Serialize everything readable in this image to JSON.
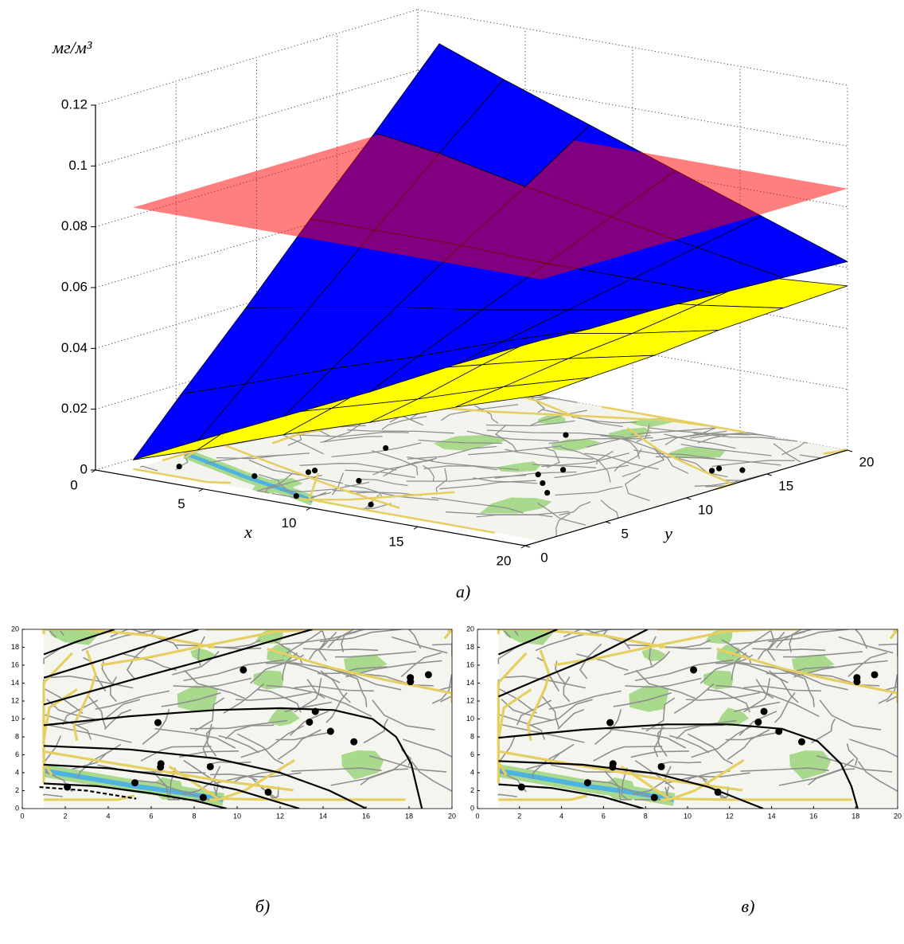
{
  "chart_data": [
    {
      "type": "surface3d",
      "zlabel": "мг/м³",
      "xlabel": "x",
      "ylabel": "y",
      "caption": "а)",
      "xlim": [
        0,
        20
      ],
      "ylim": [
        0,
        20
      ],
      "zlim": [
        0,
        0.12
      ],
      "xticks": [
        0,
        5,
        10,
        15,
        20
      ],
      "yticks": [
        0,
        5,
        10,
        15,
        20
      ],
      "zticks": [
        0,
        0.02,
        0.04,
        0.06,
        0.08,
        0.1,
        0.12
      ],
      "grid": true,
      "grid_x": [
        1,
        4,
        8,
        12,
        16,
        20
      ],
      "grid_y": [
        1,
        4,
        8,
        12,
        16,
        20
      ],
      "surfaces": [
        {
          "color": "#ffff00",
          "z": [
            [
              0.003,
              0.01,
              0.02,
              0.029,
              0.039,
              0.048
            ],
            [
              0.01,
              0.016,
              0.024,
              0.032,
              0.041,
              0.049
            ],
            [
              0.019,
              0.023,
              0.03,
              0.037,
              0.044,
              0.05
            ],
            [
              0.027,
              0.031,
              0.036,
              0.041,
              0.046,
              0.052
            ],
            [
              0.036,
              0.039,
              0.042,
              0.046,
              0.049,
              0.053
            ],
            [
              0.045,
              0.046,
              0.048,
              0.05,
              0.052,
              0.054
            ]
          ]
        },
        {
          "color": "#0000ff",
          "z": [
            [
              0.003,
              0.013,
              0.026,
              0.039,
              0.053,
              0.066
            ],
            [
              0.02,
              0.027,
              0.037,
              0.046,
              0.056,
              0.065
            ],
            [
              0.042,
              0.046,
              0.051,
              0.055,
              0.06,
              0.065
            ],
            [
              0.065,
              0.065,
              0.065,
              0.064,
              0.064,
              0.064
            ],
            [
              0.087,
              0.084,
              0.078,
              0.073,
              0.068,
              0.063
            ],
            [
              0.11,
              0.102,
              0.092,
              0.082,
              0.072,
              0.062
            ]
          ]
        }
      ],
      "plane": {
        "color": "#ff0000",
        "opacity": 0.5,
        "z": 0.086
      }
    },
    {
      "type": "contour",
      "caption": "б)",
      "xlim": [
        0,
        20
      ],
      "ylim": [
        0,
        20
      ],
      "xticks": [
        0,
        2,
        4,
        6,
        8,
        10,
        12,
        14,
        16,
        18,
        20
      ],
      "yticks": [
        0,
        2,
        4,
        6,
        8,
        10,
        12,
        14,
        16,
        18,
        20
      ],
      "series": [
        {
          "color": "#000000",
          "x": [
            1,
            2.5,
            4.3
          ],
          "values": [
            17.2,
            18.6,
            20
          ]
        },
        {
          "color": "#000000",
          "x": [
            1,
            4,
            8.2
          ],
          "values": [
            14.6,
            16.8,
            20
          ]
        },
        {
          "color": "#000000",
          "x": [
            1,
            5,
            9,
            13.5
          ],
          "values": [
            11.6,
            14.3,
            16.9,
            20
          ]
        },
        {
          "color": "#000000",
          "x": [
            1,
            5,
            9,
            12,
            14.5,
            16.3,
            17.4,
            18.1,
            18.6
          ],
          "values": [
            9.3,
            10.3,
            11,
            11.2,
            11,
            10,
            8,
            5,
            0
          ]
        },
        {
          "color": "#000000",
          "x": [
            1,
            5,
            9,
            12,
            14.3,
            16
          ],
          "values": [
            7,
            6.6,
            5.6,
            4,
            2,
            0
          ]
        },
        {
          "color": "#000000",
          "x": [
            1,
            4,
            7,
            10,
            12.9
          ],
          "values": [
            4.9,
            4.5,
            3.6,
            2.1,
            0
          ]
        },
        {
          "color": "#000000",
          "x": [
            1,
            3.5,
            6,
            8,
            9.5
          ],
          "values": [
            2.8,
            2.5,
            1.7,
            0.9,
            0
          ]
        },
        {
          "color": "#000000",
          "dashed": true,
          "x": [
            0.8,
            3,
            5.3
          ],
          "values": [
            2.4,
            2,
            1.1
          ]
        }
      ]
    },
    {
      "type": "contour",
      "caption": "в)",
      "xlim": [
        0,
        20
      ],
      "ylim": [
        0,
        20
      ],
      "xticks": [
        0,
        2,
        4,
        6,
        8,
        10,
        12,
        14,
        16,
        18,
        20
      ],
      "yticks": [
        0,
        2,
        4,
        6,
        8,
        10,
        12,
        14,
        16,
        18,
        20
      ],
      "series": [
        {
          "color": "#000000",
          "x": [
            1,
            2.4,
            3.8
          ],
          "values": [
            17.2,
            18.6,
            20
          ]
        },
        {
          "color": "#000000",
          "x": [
            1,
            3,
            5.5,
            8.1
          ],
          "values": [
            12.5,
            14.5,
            16.9,
            20
          ]
        },
        {
          "color": "#000000",
          "x": [
            1,
            5,
            9,
            12,
            14.5,
            16.2,
            17.3,
            17.8,
            18.1
          ],
          "values": [
            7.9,
            8.8,
            9.4,
            9.4,
            8.9,
            7.5,
            5,
            2.5,
            0
          ]
        },
        {
          "color": "#000000",
          "x": [
            1,
            5,
            8.5,
            11,
            13.6
          ],
          "values": [
            5.3,
            4.9,
            3.9,
            2.4,
            0
          ]
        },
        {
          "color": "#000000",
          "x": [
            1,
            3.5,
            6,
            7.9
          ],
          "values": [
            2.7,
            2.3,
            1.3,
            0
          ]
        }
      ]
    }
  ]
}
